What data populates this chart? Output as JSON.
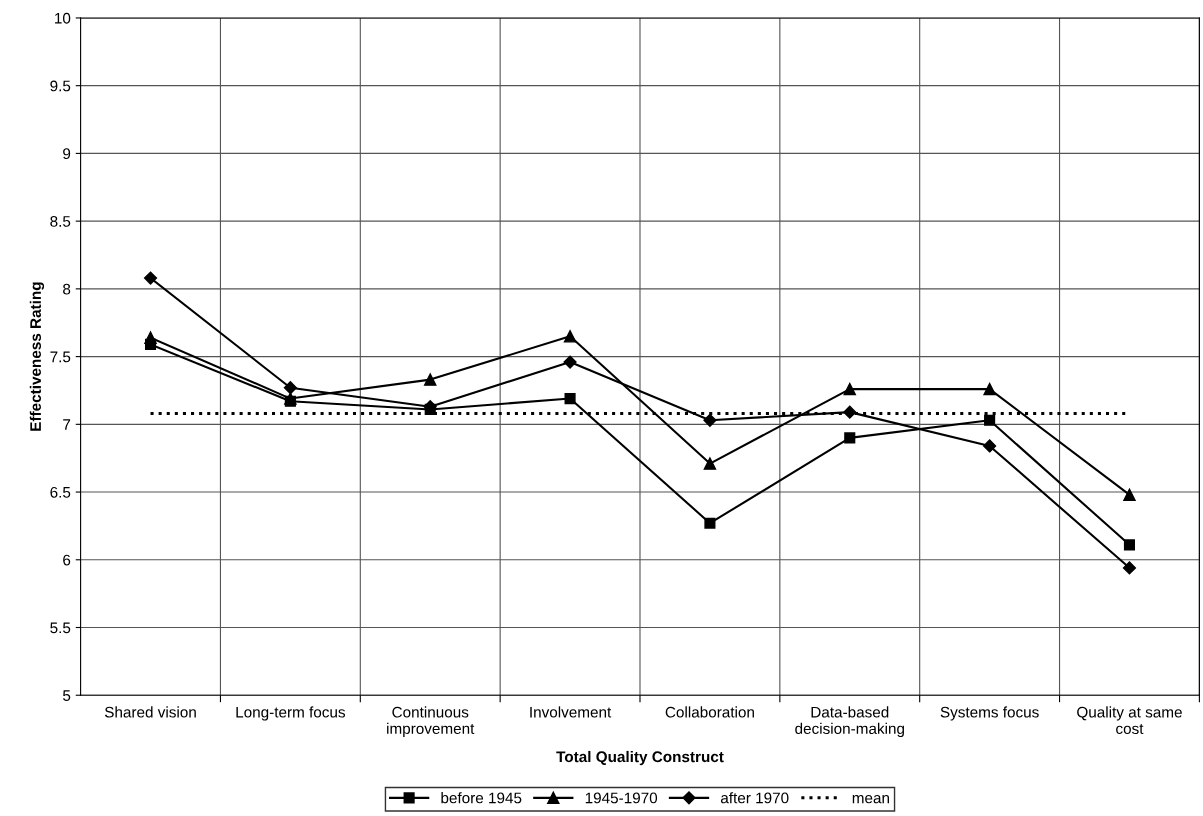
{
  "chart_data": {
    "type": "line",
    "xlabel": "Total Quality Construct",
    "ylabel": "Effectiveness Rating",
    "categories": [
      "Shared vision",
      "Long-term focus",
      "Continuous\nimprovement",
      "Involvement",
      "Collaboration",
      "Data-based\ndecision-making",
      "Systems focus",
      "Quality at same\ncost"
    ],
    "series": [
      {
        "name": "before 1945",
        "color": "#000000",
        "marker": "square",
        "line_style": "solid",
        "values": [
          7.59,
          7.17,
          7.11,
          7.19,
          6.27,
          6.9,
          7.03,
          6.11
        ]
      },
      {
        "name": "1945-1970",
        "color": "#000000",
        "marker": "triangle",
        "line_style": "solid",
        "values": [
          7.64,
          7.19,
          7.33,
          7.65,
          6.71,
          7.26,
          7.26,
          6.48
        ]
      },
      {
        "name": "after 1970",
        "color": "#000000",
        "marker": "diamond",
        "line_style": "solid",
        "values": [
          8.08,
          7.27,
          7.13,
          7.46,
          7.03,
          7.09,
          6.84,
          5.94
        ]
      },
      {
        "name": "mean",
        "color": "#000000",
        "marker": "none",
        "line_style": "dotted",
        "values": [
          7.08,
          7.08,
          7.08,
          7.08,
          7.08,
          7.08,
          7.08,
          7.08
        ]
      }
    ],
    "ylim": [
      5,
      10
    ],
    "yticks": [
      5,
      5.5,
      6,
      6.5,
      7,
      7.5,
      8,
      8.5,
      9,
      9.5,
      10
    ],
    "grid": true,
    "legend": "bottom"
  }
}
